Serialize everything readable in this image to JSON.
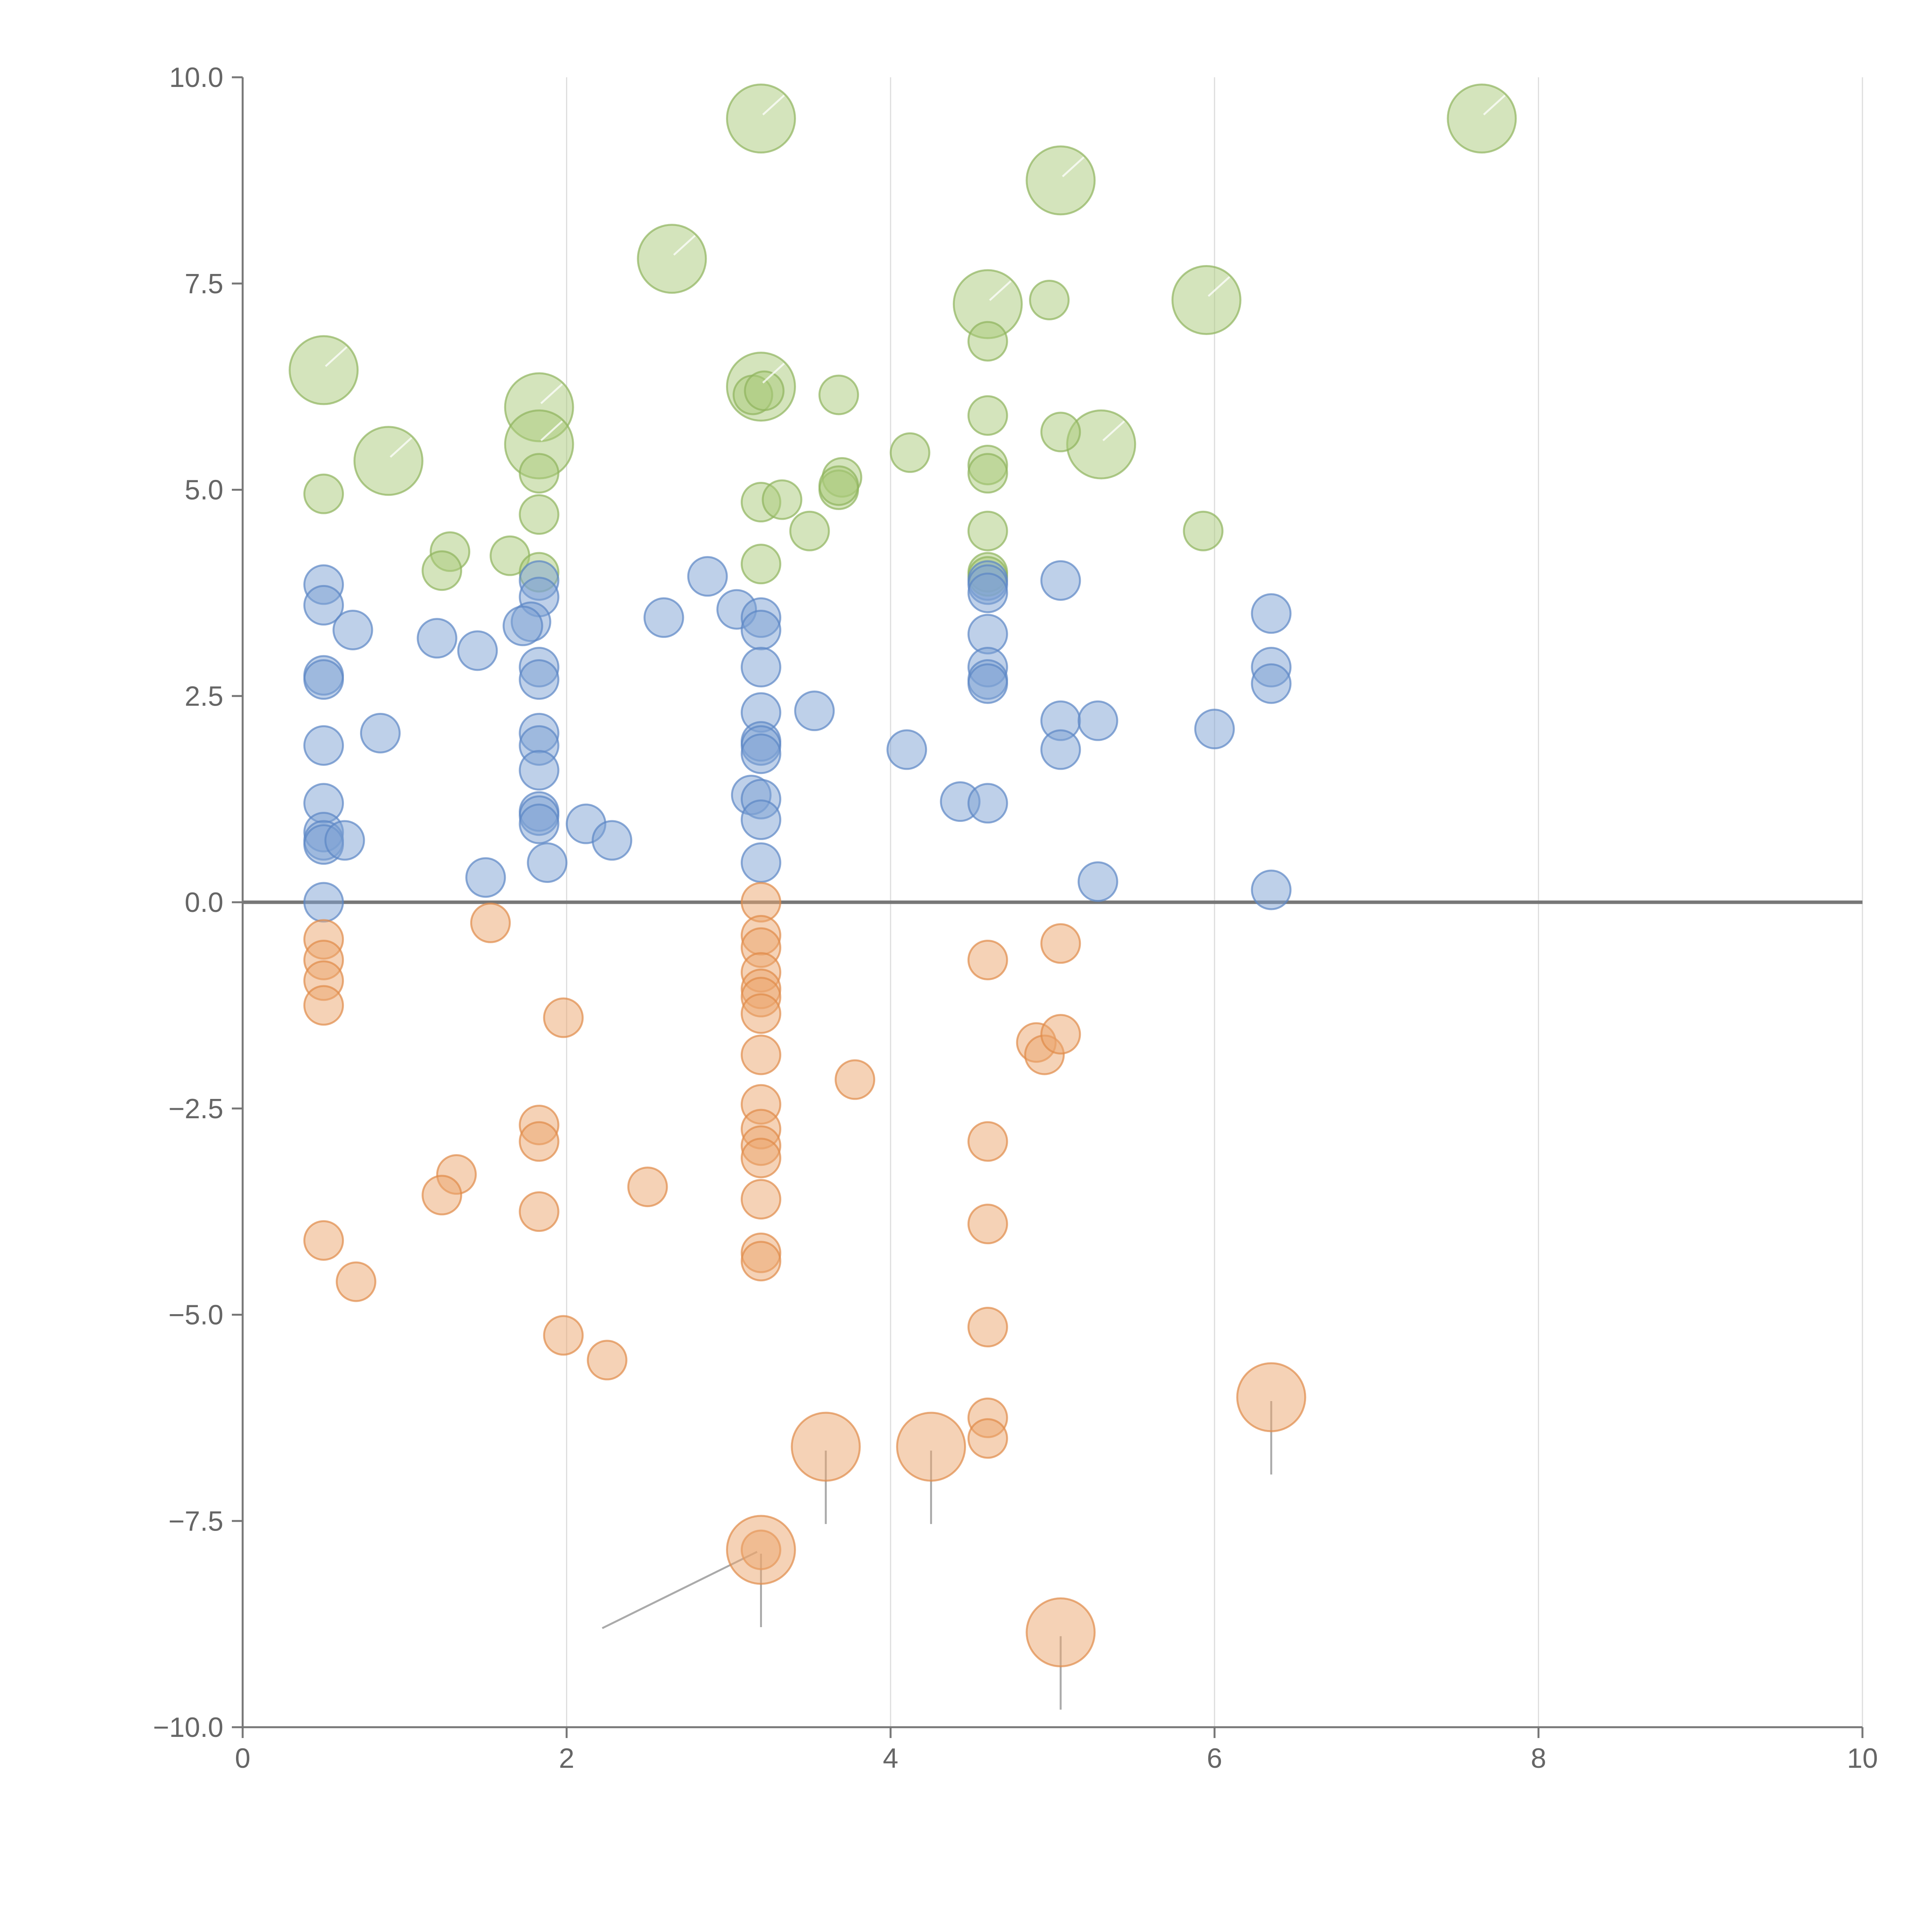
{
  "chart_data": {
    "type": "scatter",
    "title": "",
    "xlabel": "",
    "ylabel": "",
    "xlim": [
      0,
      10
    ],
    "ylim": [
      -10,
      10
    ],
    "grid": "vertical at major x ticks",
    "x_ticks": [
      "0",
      "2",
      "4",
      "6",
      "8",
      "10"
    ],
    "y_ticks": [
      "−10.0",
      "−7.5",
      "−5.0",
      "−2.5",
      "0.0",
      "2.5",
      "5.0",
      "7.5",
      "10.0"
    ],
    "colors": {
      "green": "#a9c97a",
      "green_edge": "#8fb35c",
      "blue": "#7ea1d3",
      "blue_edge": "#5b86c4",
      "orange": "#eba66e",
      "orange_edge": "#df8a48"
    },
    "series": [
      {
        "name": "green",
        "color": "green",
        "points": [
          [
            3.2,
            9.5,
            2
          ],
          [
            7.65,
            9.5,
            2
          ],
          [
            5.05,
            8.75,
            2
          ],
          [
            2.65,
            7.8,
            2
          ],
          [
            4.6,
            7.25,
            2
          ],
          [
            5.95,
            7.3,
            2
          ],
          [
            0.5,
            6.45,
            2
          ],
          [
            3.2,
            6.25,
            2
          ],
          [
            1.83,
            6.0,
            2
          ],
          [
            1.83,
            5.55,
            2
          ],
          [
            0.9,
            5.35,
            2
          ],
          [
            5.3,
            5.55,
            2
          ],
          [
            4.98,
            7.3,
            1
          ],
          [
            4.6,
            6.8,
            1
          ],
          [
            3.68,
            6.15,
            1
          ],
          [
            3.15,
            6.15,
            1
          ],
          [
            3.22,
            6.2,
            1
          ],
          [
            4.6,
            5.9,
            1
          ],
          [
            5.05,
            5.7,
            1
          ],
          [
            4.12,
            5.45,
            1
          ],
          [
            4.6,
            5.3,
            1
          ],
          [
            4.6,
            5.2,
            1
          ],
          [
            1.83,
            5.2,
            1
          ],
          [
            3.7,
            5.15,
            1
          ],
          [
            3.68,
            5.0,
            1
          ],
          [
            3.68,
            5.05,
            1
          ],
          [
            0.5,
            4.95,
            1
          ],
          [
            3.2,
            4.85,
            1
          ],
          [
            3.33,
            4.88,
            1
          ],
          [
            1.83,
            4.7,
            1
          ],
          [
            3.5,
            4.5,
            1
          ],
          [
            4.6,
            4.5,
            1
          ],
          [
            5.93,
            4.5,
            1
          ],
          [
            1.28,
            4.25,
            1
          ],
          [
            1.65,
            4.2,
            1
          ],
          [
            3.2,
            4.1,
            1
          ],
          [
            1.23,
            4.02,
            1
          ],
          [
            1.83,
            4.0,
            1
          ],
          [
            4.6,
            4.0,
            1
          ],
          [
            4.6,
            3.95,
            1
          ]
        ]
      },
      {
        "name": "blue",
        "color": "blue",
        "points": [
          [
            0.5,
            3.85,
            1
          ],
          [
            0.5,
            3.6,
            1
          ],
          [
            0.68,
            3.3,
            1
          ],
          [
            1.2,
            3.2,
            1
          ],
          [
            1.45,
            3.05,
            1
          ],
          [
            0.5,
            2.75,
            1
          ],
          [
            0.5,
            2.7,
            1
          ],
          [
            0.5,
            1.9,
            1
          ],
          [
            0.85,
            2.05,
            1
          ],
          [
            0.5,
            1.2,
            1
          ],
          [
            0.5,
            0.85,
            1
          ],
          [
            0.5,
            0.75,
            1
          ],
          [
            0.5,
            0.7,
            1
          ],
          [
            0.63,
            0.75,
            1
          ],
          [
            0.5,
            0.0,
            1
          ],
          [
            1.5,
            0.3,
            1
          ],
          [
            1.83,
            3.9,
            1
          ],
          [
            1.83,
            3.7,
            1
          ],
          [
            1.78,
            3.4,
            1
          ],
          [
            1.73,
            3.35,
            1
          ],
          [
            1.83,
            2.85,
            1
          ],
          [
            1.83,
            2.7,
            1
          ],
          [
            1.83,
            2.05,
            1
          ],
          [
            1.83,
            1.9,
            1
          ],
          [
            1.83,
            1.6,
            1
          ],
          [
            1.83,
            1.1,
            1
          ],
          [
            1.83,
            1.05,
            1
          ],
          [
            1.83,
            0.95,
            1
          ],
          [
            2.12,
            0.95,
            1
          ],
          [
            2.28,
            0.75,
            1
          ],
          [
            1.88,
            0.48,
            1
          ],
          [
            2.87,
            3.95,
            1
          ],
          [
            2.6,
            3.45,
            1
          ],
          [
            3.05,
            3.55,
            1
          ],
          [
            3.2,
            3.45,
            1
          ],
          [
            3.2,
            3.3,
            1
          ],
          [
            3.2,
            2.85,
            1
          ],
          [
            3.2,
            2.3,
            1
          ],
          [
            3.2,
            1.95,
            1
          ],
          [
            3.2,
            1.9,
            1
          ],
          [
            3.2,
            1.8,
            1
          ],
          [
            3.14,
            1.3,
            1
          ],
          [
            3.2,
            1.25,
            1
          ],
          [
            3.2,
            1.0,
            1
          ],
          [
            3.2,
            0.48,
            1
          ],
          [
            3.53,
            2.32,
            1
          ],
          [
            4.1,
            1.85,
            1
          ],
          [
            4.43,
            1.22,
            1
          ],
          [
            4.6,
            1.2,
            1
          ],
          [
            4.6,
            3.9,
            1
          ],
          [
            4.6,
            3.85,
            1
          ],
          [
            4.6,
            3.75,
            1
          ],
          [
            4.6,
            3.25,
            1
          ],
          [
            4.6,
            2.85,
            1
          ],
          [
            4.6,
            2.7,
            1
          ],
          [
            4.6,
            2.65,
            1
          ],
          [
            5.05,
            3.9,
            1
          ],
          [
            5.05,
            2.2,
            1
          ],
          [
            5.28,
            2.2,
            1
          ],
          [
            5.05,
            1.85,
            1
          ],
          [
            5.28,
            0.25,
            1
          ],
          [
            6.0,
            2.1,
            1
          ],
          [
            6.35,
            3.5,
            1
          ],
          [
            6.35,
            2.85,
            1
          ],
          [
            6.35,
            2.65,
            1
          ],
          [
            6.35,
            0.15,
            1
          ]
        ]
      },
      {
        "name": "orange",
        "color": "orange",
        "points": [
          [
            0.5,
            -0.45,
            1
          ],
          [
            0.5,
            -0.7,
            1
          ],
          [
            0.5,
            -0.95,
            1
          ],
          [
            0.5,
            -1.25,
            1
          ],
          [
            1.53,
            -0.25,
            1
          ],
          [
            1.98,
            -1.4,
            1
          ],
          [
            1.83,
            -2.7,
            1
          ],
          [
            1.83,
            -2.9,
            1
          ],
          [
            1.32,
            -3.3,
            1
          ],
          [
            1.23,
            -3.55,
            1
          ],
          [
            1.83,
            -3.75,
            1
          ],
          [
            0.5,
            -4.1,
            1
          ],
          [
            0.7,
            -4.6,
            1
          ],
          [
            1.98,
            -5.25,
            1
          ],
          [
            2.25,
            -5.55,
            1
          ],
          [
            2.5,
            -3.45,
            1
          ],
          [
            3.2,
            0.0,
            1
          ],
          [
            3.2,
            -0.4,
            1
          ],
          [
            3.2,
            -0.55,
            1
          ],
          [
            3.2,
            -0.85,
            1
          ],
          [
            3.2,
            -1.05,
            1
          ],
          [
            3.2,
            -1.15,
            1
          ],
          [
            3.2,
            -1.35,
            1
          ],
          [
            3.2,
            -1.85,
            1
          ],
          [
            3.2,
            -2.45,
            1
          ],
          [
            3.2,
            -2.75,
            1
          ],
          [
            3.2,
            -2.95,
            1
          ],
          [
            3.2,
            -3.1,
            1
          ],
          [
            3.2,
            -3.6,
            1
          ],
          [
            3.2,
            -4.25,
            1
          ],
          [
            3.2,
            -4.35,
            1
          ],
          [
            3.2,
            -7.85,
            1
          ],
          [
            3.2,
            -7.85,
            2
          ],
          [
            3.78,
            -2.15,
            1
          ],
          [
            3.6,
            -6.6,
            2
          ],
          [
            4.25,
            -6.6,
            2
          ],
          [
            4.6,
            -0.7,
            1
          ],
          [
            4.6,
            -2.9,
            1
          ],
          [
            4.6,
            -3.9,
            1
          ],
          [
            4.6,
            -5.15,
            1
          ],
          [
            4.6,
            -6.25,
            1
          ],
          [
            4.6,
            -6.5,
            1
          ],
          [
            4.9,
            -1.7,
            1
          ],
          [
            4.95,
            -1.85,
            1
          ],
          [
            5.05,
            -1.6,
            1
          ],
          [
            5.05,
            -0.5,
            1
          ],
          [
            5.05,
            -8.85,
            2
          ],
          [
            6.35,
            -6.0,
            2
          ]
        ]
      }
    ]
  }
}
